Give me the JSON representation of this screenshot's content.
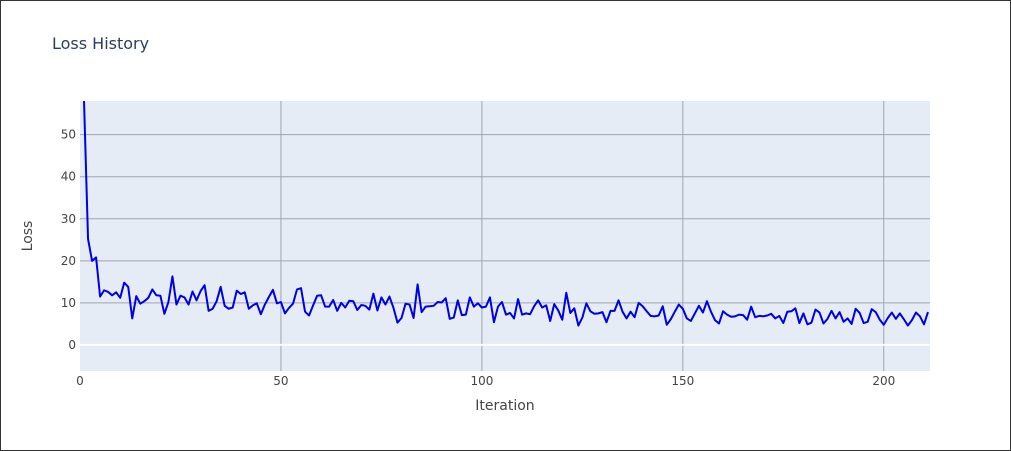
{
  "chart_data": {
    "type": "line",
    "title": "Loss History",
    "xlabel": "Iteration",
    "ylabel": "Loss",
    "xlim": [
      0,
      211.5
    ],
    "ylim": [
      -6.2,
      58
    ],
    "x_ticks": [
      0,
      50,
      100,
      150,
      200
    ],
    "y_ticks": [
      0,
      10,
      20,
      30,
      40,
      50
    ],
    "grid": true,
    "colors": {
      "line": "#0000e6",
      "plot_background": "#e5ecf6",
      "grid": "#a0a4ad",
      "zero_line": "#ffffff"
    },
    "series": [
      {
        "values": [
          58,
          25.2,
          20,
          20.8,
          11.5,
          13,
          12.6,
          11.8,
          12.5,
          11.2,
          14.8,
          13.8,
          6.3,
          11.6,
          9.8,
          10.4,
          11.2,
          13.2,
          11.8,
          11.7,
          7.4,
          10.2,
          16.3,
          9.6,
          11.7,
          11.3,
          9.6,
          12.7,
          10.6,
          12.8,
          14.2,
          8.1,
          8.6,
          10.4,
          13.8,
          9.3,
          8.6,
          8.9,
          12.9,
          12.1,
          12.5,
          8.6,
          9.4,
          9.9,
          7.3,
          9.6,
          11.4,
          13.1,
          9.9,
          10.2,
          7.5,
          8.8,
          9.8,
          13.2,
          13.5,
          7.9,
          7,
          9.4,
          11.7,
          11.8,
          9.1,
          9.1,
          10.7,
          8.1,
          10,
          8.9,
          10.5,
          10.4,
          8.3,
          9.5,
          9.3,
          8.4,
          12.2,
          8.2,
          11.3,
          9.6,
          11.5,
          8.8,
          5.3,
          6.4,
          9.8,
          9.6,
          6.4,
          14.4,
          7.8,
          9.1,
          9.2,
          9.3,
          10.2,
          10.1,
          11.1,
          6.2,
          6.5,
          10.6,
          7.1,
          7.2,
          11.3,
          9.1,
          9.9,
          8.9,
          9.1,
          11.3,
          5.4,
          9.1,
          10.2,
          7.2,
          7.6,
          6.3,
          10.9,
          7.2,
          7.5,
          7.3,
          9.2,
          10.6,
          8.9,
          9.4,
          5.7,
          9.7,
          8.2,
          6,
          12.4,
          7.6,
          8.7,
          4.6,
          6.5,
          9.9,
          8,
          7.4,
          7.5,
          7.8,
          5.4,
          8.1,
          8.1,
          10.6,
          7.9,
          6.3,
          7.9,
          6.6,
          10,
          9.2,
          8,
          6.9,
          6.8,
          7,
          9.2,
          4.8,
          6.1,
          7.9,
          9.6,
          8.6,
          6.3,
          5.7,
          7.5,
          9.3,
          7.7,
          10.4,
          7.9,
          5.9,
          5.1,
          8,
          7.2,
          6.7,
          6.8,
          7.2,
          7.1,
          6,
          9.1,
          6.6,
          6.9,
          6.8,
          7,
          7.4,
          6.3,
          6.9,
          5.2,
          7.9,
          8,
          8.7,
          5.2,
          7.5,
          4.9,
          5.3,
          8.4,
          7.7,
          5.1,
          6.2,
          8.1,
          6.3,
          7.8,
          5.5,
          6.3,
          5,
          8.6,
          7.6,
          5.2,
          5.5,
          8.5,
          7.8,
          6,
          4.8,
          6.4,
          7.7,
          6.2,
          7.5,
          6.1,
          4.6,
          5.9,
          7.7,
          6.8,
          4.9,
          7.8
        ]
      }
    ]
  }
}
